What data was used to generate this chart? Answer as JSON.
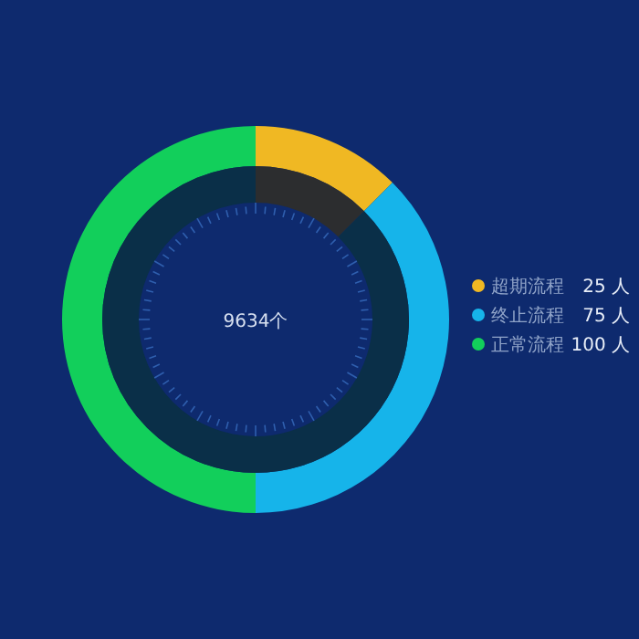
{
  "chart_data": {
    "type": "donut",
    "categories": [
      "超期流程",
      "终止流程",
      "正常流程"
    ],
    "series": [
      {
        "values": [
          12.5,
          37.5,
          50
        ],
        "colors": [
          "#f0b823",
          "#16b4ea",
          "#12cf5b"
        ]
      },
      {
        "values": [
          12.5,
          37.5,
          50
        ],
        "colors": [
          "#2c2d2f",
          "#0a2f48",
          "#0a2f48"
        ]
      }
    ],
    "value_labels": [
      "25 人",
      "75 人",
      "100 人"
    ],
    "annotations": [
      "9634个"
    ],
    "legend": "right"
  }
}
